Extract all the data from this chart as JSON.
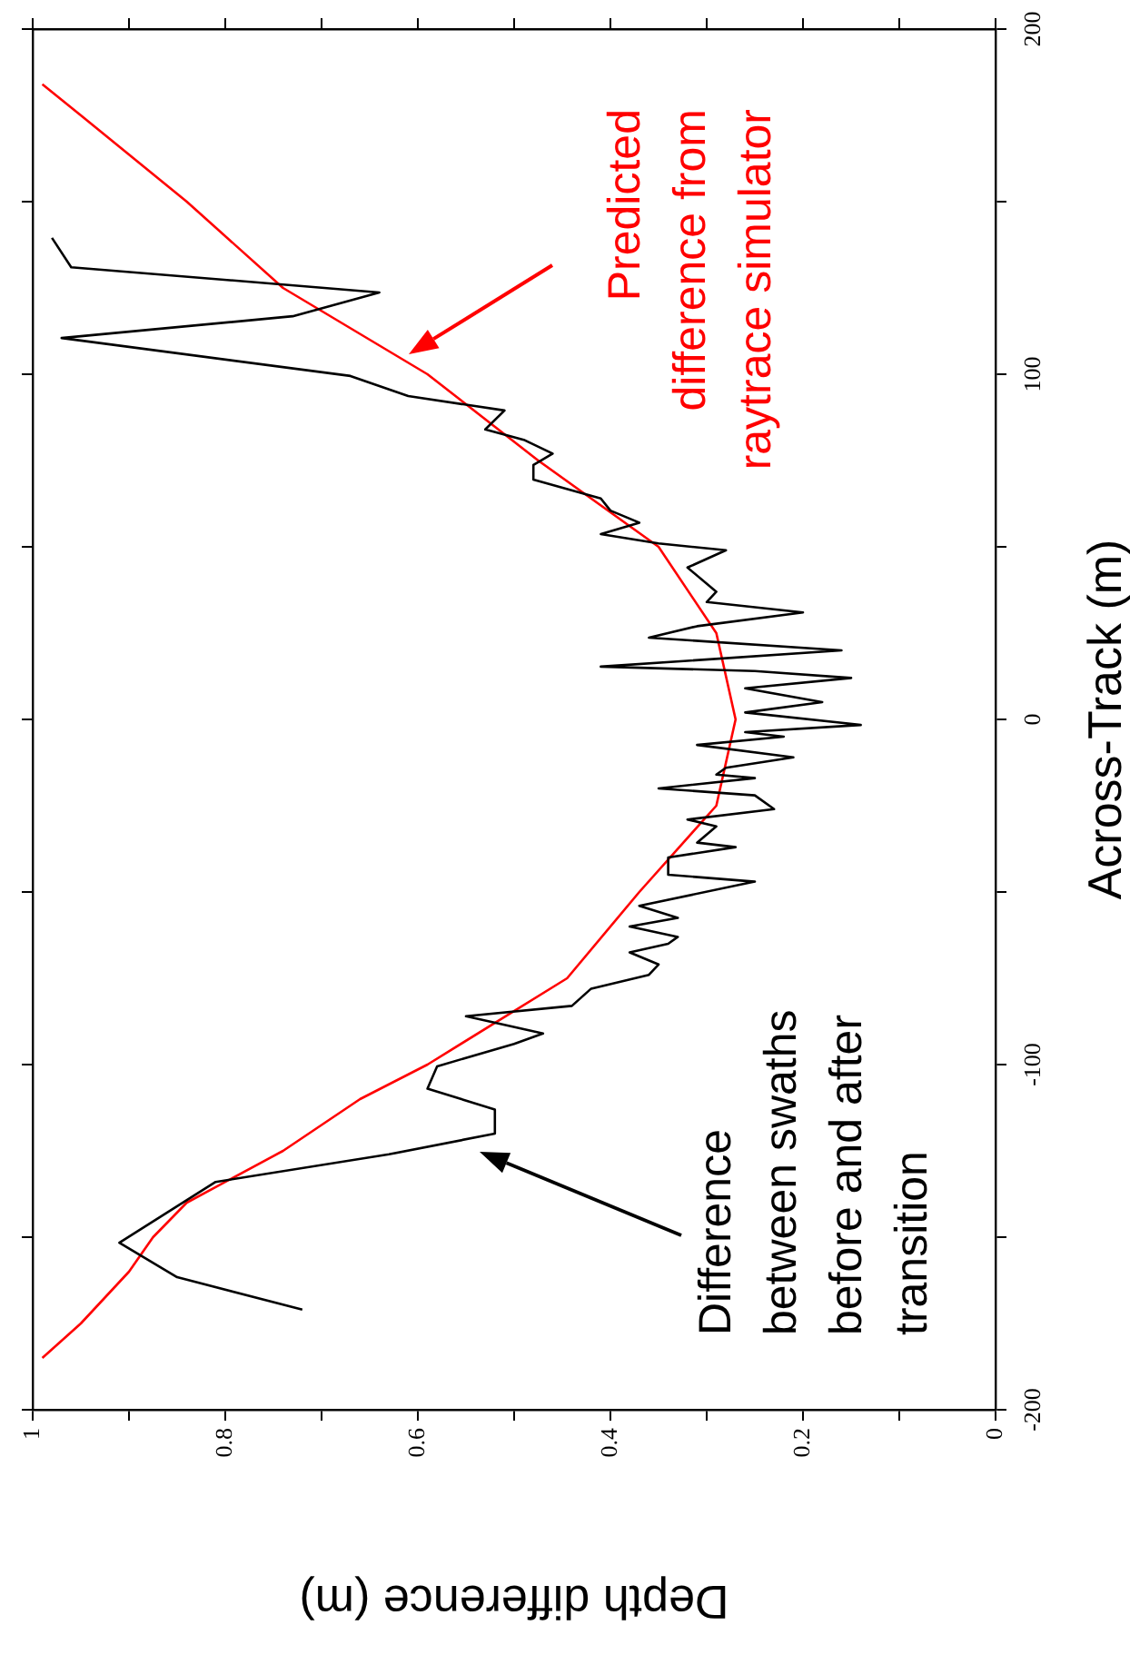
{
  "chart_data": {
    "type": "line",
    "xlabel": "Depth difference (m)",
    "ylabel": "Across-Track (m)",
    "xlim": [
      1,
      0
    ],
    "ylim": [
      -200,
      200
    ],
    "yticks": [
      -200,
      {
        "value": -150,
        "label": null
      },
      -100,
      {
        "value": -50,
        "label": null
      },
      0,
      {
        "value": 50,
        "label": null
      },
      100,
      {
        "value": 150,
        "label": null
      },
      200
    ],
    "xticks": [
      0,
      {
        "value": 0.1,
        "label": null
      },
      0.2,
      {
        "value": 0.3,
        "label": null
      },
      0.4,
      {
        "value": 0.5,
        "label": null
      },
      0.6,
      {
        "value": 0.7,
        "label": null
      },
      0.8,
      {
        "value": 0.9,
        "label": null
      },
      1
    ],
    "grid": false,
    "legend": false,
    "marker": "none",
    "series": [
      {
        "color": "#000000",
        "values": [
          -171,
          -161.6,
          -151.6,
          -134,
          -126,
          -120,
          -113,
          -107,
          -100.5,
          -94,
          -91,
          -86,
          -83,
          -78,
          -74,
          -71,
          -67.5,
          -65,
          -63,
          -60,
          -57.5,
          -54,
          -47,
          -45,
          -40,
          -37,
          -35.7,
          -31,
          -29,
          -26,
          -22,
          -20,
          -17,
          -16,
          -14,
          -11,
          -7.4,
          -5,
          -3.7,
          -1.6,
          2,
          5,
          9,
          12,
          14,
          15.3,
          20,
          23.7,
          27,
          31,
          34,
          37,
          44,
          49,
          51,
          53.7,
          57,
          60.5,
          64,
          69.5,
          73.7,
          77,
          81,
          84,
          89.5,
          93.7,
          99.5,
          110.5,
          116.8,
          123.7,
          131,
          139.5
        ],
        "x": [
          0.72,
          0.85,
          0.91,
          0.81,
          0.63,
          0.52,
          0.52,
          0.59,
          0.58,
          0.5,
          0.47,
          0.55,
          0.44,
          0.42,
          0.36,
          0.35,
          0.38,
          0.34,
          0.33,
          0.38,
          0.33,
          0.37,
          0.25,
          0.34,
          0.34,
          0.27,
          0.31,
          0.29,
          0.32,
          0.23,
          0.25,
          0.35,
          0.25,
          0.29,
          0.28,
          0.21,
          0.31,
          0.22,
          0.26,
          0.14,
          0.26,
          0.18,
          0.26,
          0.15,
          0.25,
          0.41,
          0.16,
          0.36,
          0.31,
          0.2,
          0.3,
          0.29,
          0.32,
          0.28,
          0.35,
          0.41,
          0.37,
          0.4,
          0.41,
          0.48,
          0.48,
          0.46,
          0.49,
          0.53,
          0.51,
          0.61,
          0.67,
          0.97,
          0.73,
          0.64,
          0.96,
          0.98
        ]
      },
      {
        "color": "#ff0000",
        "values": [
          -185,
          -175,
          -160,
          -150,
          -140,
          -125,
          -110,
          -100,
          -75,
          -50,
          -25,
          0,
          25,
          50,
          75,
          100,
          125,
          150,
          175,
          184
        ],
        "x": [
          0.99,
          0.95,
          0.9,
          0.875,
          0.84,
          0.74,
          0.66,
          0.59,
          0.445,
          0.37,
          0.29,
          0.27,
          0.29,
          0.35,
          0.475,
          0.59,
          0.74,
          0.84,
          0.95,
          0.99
        ]
      }
    ],
    "annotations": [
      "Difference\nbetween swaths\nbefore and after\ntransition",
      "Predicted\ndifference from\nraytrace simulator"
    ]
  }
}
